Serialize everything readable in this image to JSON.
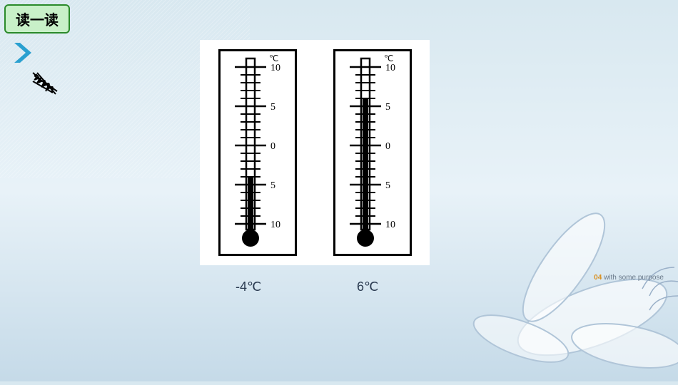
{
  "title": "读一读",
  "chevron_color": "#2aa0d0",
  "scribble_color": "#000000",
  "panel_bg": "#ffffff",
  "thermometers": [
    {
      "label": "-4℃",
      "fill_value": -4,
      "unit": "℃",
      "scale_max": 10,
      "scale_min": -10,
      "major_labels": [
        10,
        5,
        0,
        5,
        10
      ],
      "tick_color": "#000000",
      "fluid_color": "#000000",
      "border_color": "#000000"
    },
    {
      "label": "6℃",
      "fill_value": 6,
      "unit": "℃",
      "scale_max": 10,
      "scale_min": -10,
      "major_labels": [
        10,
        5,
        0,
        5,
        10
      ],
      "tick_color": "#000000",
      "fluid_color": "#000000",
      "border_color": "#000000"
    }
  ],
  "watermark_num": "04",
  "watermark_text": "with some purpose",
  "background_gradient": [
    "#d8e8f0",
    "#e8f2f8",
    "#c5dae8"
  ],
  "petal_stroke": "#c0d0e0",
  "petal_fill": "#ffffff"
}
